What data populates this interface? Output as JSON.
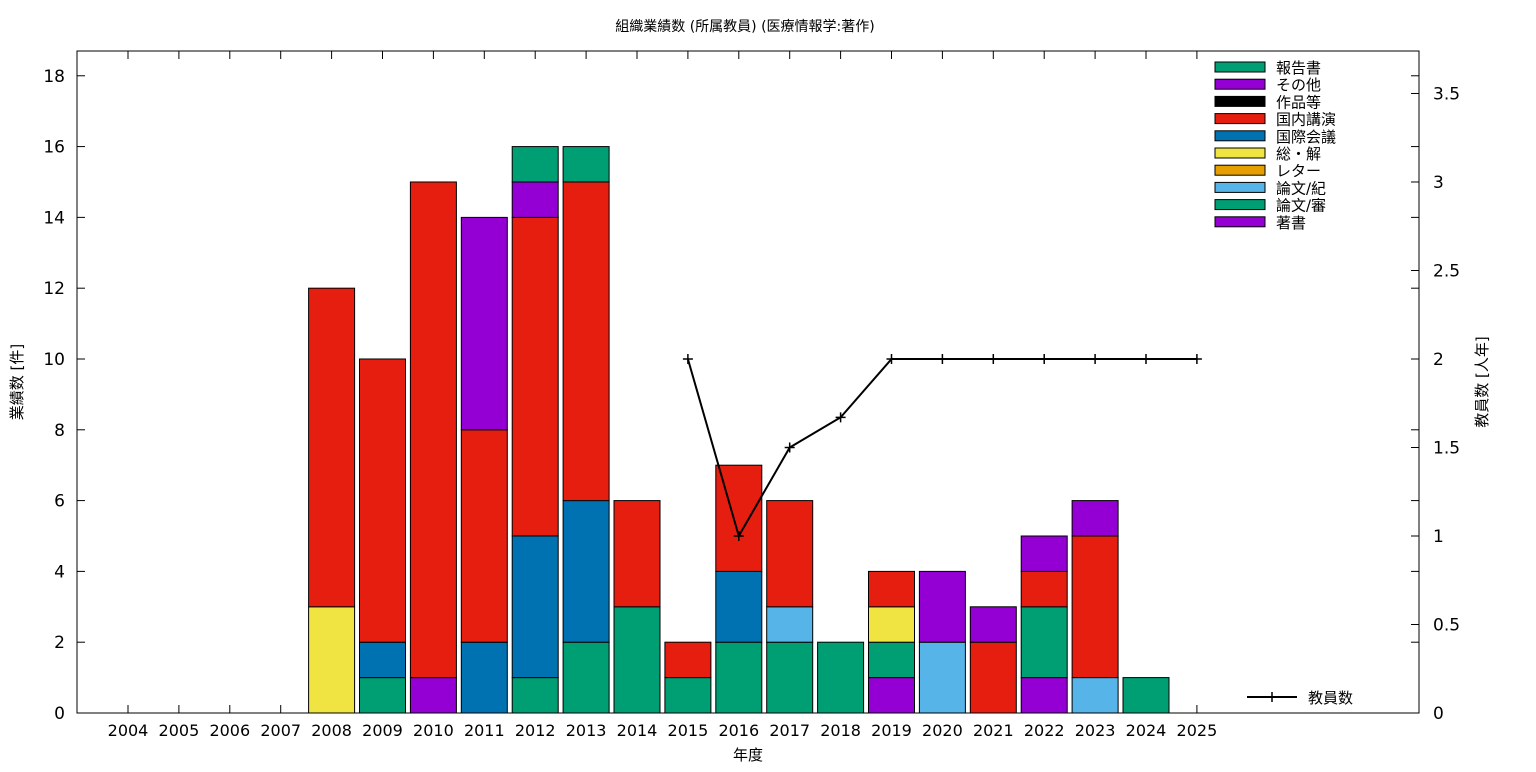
{
  "chart_data": {
    "type": "bar",
    "stacked": true,
    "title": "組織業績数 (所属教員) (医療情報学:著作)",
    "xlabel": "年度",
    "ylabel": "業績数 [件]",
    "y2label": "教員数 [人年]",
    "ylim": [
      0,
      18.7
    ],
    "yticks": [
      0,
      2,
      4,
      6,
      8,
      10,
      12,
      14,
      16,
      18
    ],
    "y2lim": [
      0,
      3.74
    ],
    "y2ticks": [
      "0",
      "0.5",
      "1",
      "1.5",
      "2",
      "2.5",
      "3",
      "3.5"
    ],
    "legend_position": "top-right",
    "categories": [
      "2004",
      "2005",
      "2006",
      "2007",
      "2008",
      "2009",
      "2010",
      "2011",
      "2012",
      "2013",
      "2014",
      "2015",
      "2016",
      "2017",
      "2018",
      "2019",
      "2020",
      "2021",
      "2022",
      "2023",
      "2024",
      "2025"
    ],
    "series": [
      {
        "name": "著書",
        "color": "#9400d3",
        "values": [
          0,
          0,
          0,
          0,
          0,
          0,
          1,
          0,
          0,
          0,
          0,
          0,
          0,
          0,
          0,
          1,
          0,
          0,
          1,
          0,
          0,
          0
        ]
      },
      {
        "name": "論文/審",
        "color": "#009e73",
        "values": [
          0,
          0,
          0,
          0,
          0,
          1,
          0,
          0,
          1,
          2,
          3,
          1,
          2,
          2,
          2,
          1,
          0,
          0,
          2,
          0,
          1,
          0
        ]
      },
      {
        "name": "論文/紀",
        "color": "#56b4e9",
        "values": [
          0,
          0,
          0,
          0,
          0,
          0,
          0,
          0,
          0,
          0,
          0,
          0,
          0,
          1,
          0,
          0,
          2,
          0,
          0,
          1,
          0,
          0
        ]
      },
      {
        "name": "レター",
        "color": "#e69f00",
        "values": [
          0,
          0,
          0,
          0,
          0,
          0,
          0,
          0,
          0,
          0,
          0,
          0,
          0,
          0,
          0,
          0,
          0,
          0,
          0,
          0,
          0,
          0
        ]
      },
      {
        "name": "総・解",
        "color": "#f0e442",
        "values": [
          0,
          0,
          0,
          0,
          3,
          0,
          0,
          0,
          0,
          0,
          0,
          0,
          0,
          0,
          0,
          1,
          0,
          0,
          0,
          0,
          0,
          0
        ]
      },
      {
        "name": "国際会議",
        "color": "#0072b2",
        "values": [
          0,
          0,
          0,
          0,
          0,
          1,
          0,
          2,
          4,
          4,
          0,
          0,
          2,
          0,
          0,
          0,
          0,
          0,
          0,
          0,
          0,
          0
        ]
      },
      {
        "name": "国内講演",
        "color": "#e51e10",
        "values": [
          0,
          0,
          0,
          0,
          9,
          8,
          14,
          6,
          9,
          9,
          3,
          1,
          3,
          3,
          0,
          1,
          0,
          2,
          1,
          4,
          0,
          0
        ]
      },
      {
        "name": "作品等",
        "color": "#000000",
        "values": [
          0,
          0,
          0,
          0,
          0,
          0,
          0,
          0,
          0,
          0,
          0,
          0,
          0,
          0,
          0,
          0,
          0,
          0,
          0,
          0,
          0,
          0
        ]
      },
      {
        "name": "その他",
        "color": "#9400d3",
        "values": [
          0,
          0,
          0,
          0,
          0,
          0,
          0,
          6,
          1,
          0,
          0,
          0,
          0,
          0,
          0,
          0,
          2,
          1,
          1,
          1,
          0,
          0
        ]
      },
      {
        "name": "報告書",
        "color": "#009e73",
        "values": [
          0,
          0,
          0,
          0,
          0,
          0,
          0,
          0,
          1,
          1,
          0,
          0,
          0,
          0,
          0,
          0,
          0,
          0,
          0,
          0,
          0,
          0
        ]
      }
    ],
    "legend_order": [
      "報告書",
      "その他",
      "作品等",
      "国内講演",
      "国際会議",
      "総・解",
      "レター",
      "論文/紀",
      "論文/審",
      "著書"
    ],
    "line_series": {
      "name": "教員数",
      "axis": "y2",
      "x": [
        "2015",
        "2016",
        "2017",
        "2018",
        "2019",
        "2020",
        "2021",
        "2022",
        "2023",
        "2024",
        "2025"
      ],
      "values": [
        2,
        1,
        1.5,
        1.67,
        2,
        2,
        2,
        2,
        2,
        2,
        2
      ]
    }
  }
}
